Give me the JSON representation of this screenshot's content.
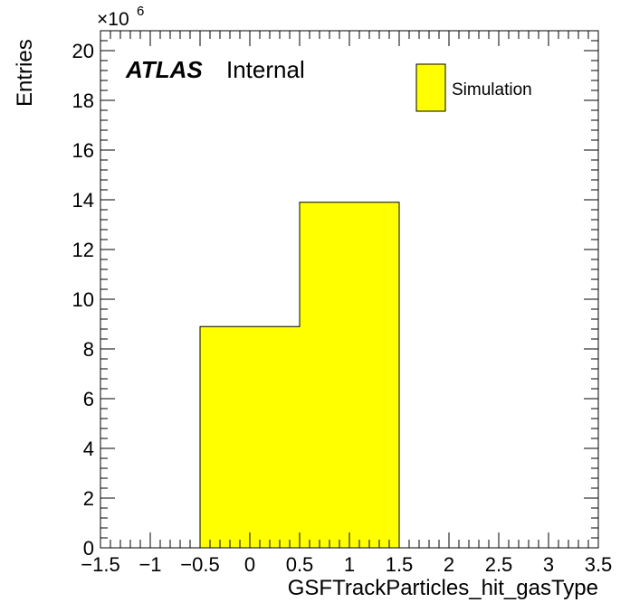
{
  "chart_data": {
    "type": "bar",
    "title": "",
    "xlabel": "GSFTrackParticles_hit_gasType",
    "ylabel": "Entries",
    "y_multiplier_base": "×10",
    "y_multiplier_exp": "6",
    "xlim": [
      -1.5,
      3.5
    ],
    "ylim": [
      0,
      20.8
    ],
    "x_ticks": [
      -1.5,
      -1,
      -0.5,
      0,
      0.5,
      1,
      1.5,
      2,
      2.5,
      3,
      3.5
    ],
    "x_tick_labels": [
      "−1.5",
      "−1",
      "−0.5",
      "0",
      "0.5",
      "1",
      "1.5",
      "2",
      "2.5",
      "3",
      "3.5"
    ],
    "y_ticks": [
      0,
      2,
      4,
      6,
      8,
      10,
      12,
      14,
      16,
      18,
      20
    ],
    "y_tick_labels": [
      "0",
      "2",
      "4",
      "6",
      "8",
      "10",
      "12",
      "14",
      "16",
      "18",
      "20"
    ],
    "bins": [
      {
        "low": -0.5,
        "high": 0.5,
        "value": 8.9
      },
      {
        "low": 0.5,
        "high": 1.5,
        "value": 13.9
      }
    ],
    "series": [
      {
        "name": "Simulation",
        "color": "#ffff00"
      }
    ],
    "legend_position": "top-right",
    "grid": false,
    "annotation_bold": "ATLAS",
    "annotation_text": "Internal"
  }
}
